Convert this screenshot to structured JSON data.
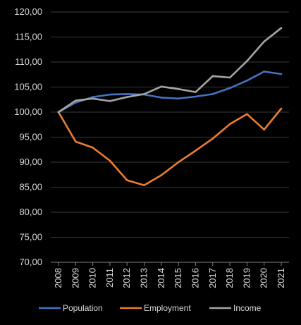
{
  "chart_data": {
    "type": "line",
    "title": "",
    "xlabel": "",
    "ylabel": "",
    "categories": [
      "2008",
      "2009",
      "2010",
      "2011",
      "2012",
      "2013",
      "2014",
      "2015",
      "2016",
      "2017",
      "2018",
      "2019",
      "2020",
      "2021"
    ],
    "ylim": [
      70,
      120
    ],
    "yticks": [
      "70,00",
      "75,00",
      "80,00",
      "85,00",
      "90,00",
      "95,00",
      "100,00",
      "105,00",
      "110,00",
      "115,00",
      "120,00"
    ],
    "grid": true,
    "legend_position": "bottom",
    "series": [
      {
        "name": "Population",
        "color": "#4472c4",
        "values": [
          100.0,
          101.9,
          103.0,
          103.5,
          103.6,
          103.5,
          102.9,
          102.7,
          103.1,
          103.6,
          104.8,
          106.3,
          108.1,
          107.6
        ]
      },
      {
        "name": "Employment",
        "color": "#ed7d31",
        "values": [
          100.0,
          94.1,
          92.9,
          90.3,
          86.4,
          85.4,
          87.4,
          90.0,
          92.3,
          94.7,
          97.6,
          99.6,
          96.5,
          100.7
        ]
      },
      {
        "name": "Income",
        "color": "#a5a5a5",
        "values": [
          100.0,
          102.3,
          102.7,
          102.2,
          103.0,
          103.6,
          105.1,
          104.6,
          104.0,
          107.2,
          106.9,
          110.2,
          114.1,
          116.8
        ]
      }
    ]
  }
}
